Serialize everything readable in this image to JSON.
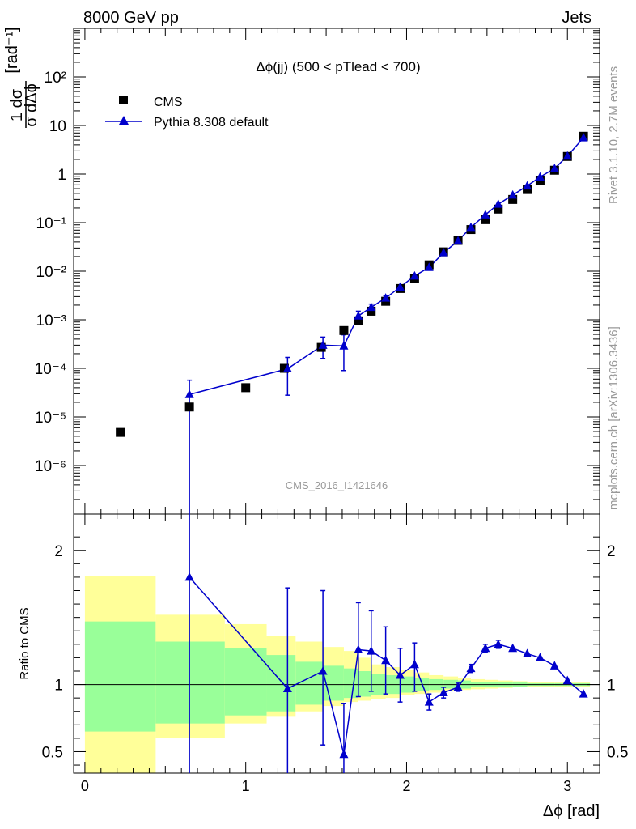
{
  "header": {
    "left": "8000 GeV pp",
    "right": "Jets"
  },
  "side_labels": {
    "top": "Rivet 3.1.10,  2.7M events",
    "bottom": "mcplots.cern.ch [arXiv:1306.3436]"
  },
  "watermark": "CMS_2016_I1421646",
  "colors": {
    "data": "#000000",
    "mc": "#0000cc",
    "band_inner": "#99ff99",
    "band_outer": "#ffff99"
  },
  "chart_data": [
    {
      "type": "scatter",
      "title": "Δϕ(jj) (500 < pTlead <  700)",
      "xlabel": "Δϕ [rad]",
      "ylabel": "1/σ dσ/dΔϕ [rad⁻¹]",
      "yscale": "log",
      "xlim": [
        -0.07,
        3.2
      ],
      "ylim": [
        1e-07,
        1000
      ],
      "legend": {
        "placement": "top-left",
        "entries": [
          "CMS",
          "Pythia 8.308 default"
        ]
      },
      "series": [
        {
          "name": "CMS",
          "marker": "square",
          "x": [
            0.22,
            0.65,
            1.0,
            1.24,
            1.47,
            1.61,
            1.7,
            1.78,
            1.87,
            1.96,
            2.05,
            2.14,
            2.23,
            2.32,
            2.4,
            2.49,
            2.57,
            2.66,
            2.75,
            2.83,
            2.92,
            3.0,
            3.1
          ],
          "y": [
            4.8e-06,
            1.6e-05,
            4e-05,
            0.0001,
            0.00027,
            0.0006,
            0.00095,
            0.0015,
            0.0024,
            0.0044,
            0.0072,
            0.0135,
            0.025,
            0.043,
            0.072,
            0.115,
            0.19,
            0.3,
            0.48,
            0.75,
            1.2,
            2.3,
            6.0
          ]
        },
        {
          "name": "Pythia 8.308 default",
          "marker": "triangle",
          "x": [
            0.65,
            1.26,
            1.48,
            1.61,
            1.7,
            1.78,
            1.87,
            1.96,
            2.05,
            2.14,
            2.23,
            2.32,
            2.4,
            2.49,
            2.57,
            2.66,
            2.75,
            2.83,
            2.92,
            3.0,
            3.1
          ],
          "y": [
            2.9e-05,
            9.8e-05,
            0.0003,
            0.00029,
            0.0012,
            0.0018,
            0.0028,
            0.0047,
            0.008,
            0.012,
            0.024,
            0.042,
            0.08,
            0.145,
            0.24,
            0.37,
            0.57,
            0.87,
            1.3,
            2.35,
            5.6
          ],
          "yerr_low": [
            2.9e-05,
            7e-05,
            0.00014,
            0.0002,
            0.0003,
            0.0003,
            0.0003,
            0.0003,
            0.0005,
            0,
            0,
            0,
            0,
            0,
            0,
            0,
            0,
            0,
            0,
            0,
            0
          ],
          "yerr_high": [
            2.8e-05,
            7e-05,
            0.00014,
            0.0002,
            0.0003,
            0.0003,
            0.0003,
            0.0003,
            0.0005,
            0,
            0,
            0,
            0,
            0,
            0,
            0,
            0,
            0,
            0,
            0,
            0
          ]
        }
      ],
      "y_tick_labels": [
        "10⁻⁶",
        "10⁻⁵",
        "10⁻⁴",
        "10⁻³",
        "10⁻²",
        "10⁻¹",
        "1",
        "10",
        "10²"
      ]
    },
    {
      "type": "line",
      "ylabel": "Ratio to CMS",
      "xlabel": "Δϕ [rad]",
      "xlim": [
        -0.07,
        3.2
      ],
      "ylim": [
        0.34,
        2.27
      ],
      "x_ticks": [
        0,
        1,
        2,
        3
      ],
      "x_tick_labels": [
        "0",
        "1",
        "2",
        "3"
      ],
      "y_ticks": [
        0.5,
        1,
        2
      ],
      "y_tick_labels": [
        "0.5",
        "1",
        "2"
      ],
      "reference_line": 1,
      "bands": {
        "edges": [
          0.0,
          0.44,
          0.87,
          1.13,
          1.31,
          1.48,
          1.61,
          1.7,
          1.78,
          1.87,
          1.96,
          2.05,
          2.14,
          2.23,
          2.32,
          2.4,
          2.49,
          2.57,
          2.66,
          2.75,
          2.83,
          2.92,
          3.0,
          3.14
        ],
        "inner_low": [
          0.65,
          0.71,
          0.77,
          0.8,
          0.85,
          0.88,
          0.9,
          0.91,
          0.92,
          0.93,
          0.94,
          0.95,
          0.96,
          0.97,
          0.97,
          0.98,
          0.98,
          0.985,
          0.985,
          0.99,
          0.99,
          0.99,
          0.99
        ],
        "inner_high": [
          1.47,
          1.32,
          1.27,
          1.22,
          1.17,
          1.14,
          1.12,
          1.1,
          1.08,
          1.07,
          1.06,
          1.05,
          1.04,
          1.035,
          1.03,
          1.02,
          1.02,
          1.015,
          1.015,
          1.01,
          1.01,
          1.01,
          1.01
        ],
        "outer_low": [
          0.2,
          0.6,
          0.71,
          0.76,
          0.8,
          0.84,
          0.87,
          0.88,
          0.89,
          0.9,
          0.92,
          0.93,
          0.94,
          0.95,
          0.96,
          0.965,
          0.97,
          0.975,
          0.98,
          0.98,
          0.985,
          0.985,
          0.985
        ],
        "outer_high": [
          1.81,
          1.52,
          1.45,
          1.36,
          1.32,
          1.28,
          1.25,
          1.2,
          1.15,
          1.13,
          1.11,
          1.09,
          1.07,
          1.06,
          1.05,
          1.04,
          1.035,
          1.03,
          1.025,
          1.02,
          1.02,
          1.015,
          1.015
        ]
      },
      "series": [
        {
          "name": "Pythia 8.308 default",
          "x": [
            0.65,
            1.26,
            1.48,
            1.61,
            1.7,
            1.78,
            1.87,
            1.96,
            2.05,
            2.14,
            2.23,
            2.32,
            2.4,
            2.49,
            2.57,
            2.66,
            2.75,
            2.83,
            2.92,
            3.0,
            3.1
          ],
          "y": [
            1.8,
            0.97,
            1.1,
            0.48,
            1.26,
            1.25,
            1.18,
            1.07,
            1.15,
            0.87,
            0.94,
            0.98,
            1.12,
            1.27,
            1.3,
            1.27,
            1.23,
            1.2,
            1.14,
            1.03,
            0.93
          ],
          "yerr_low": [
            1.5,
            0.7,
            0.55,
            0.3,
            0.35,
            0.3,
            0.25,
            0.2,
            0.2,
            0.06,
            0.04,
            0.03,
            0.03,
            0.03,
            0.03,
            0,
            0,
            0,
            0,
            0,
            0
          ],
          "yerr_high": [
            1.5,
            0.75,
            0.6,
            0.38,
            0.35,
            0.3,
            0.25,
            0.2,
            0.16,
            0.06,
            0.04,
            0.03,
            0.03,
            0.03,
            0.03,
            0,
            0,
            0,
            0,
            0,
            0
          ]
        }
      ]
    }
  ]
}
